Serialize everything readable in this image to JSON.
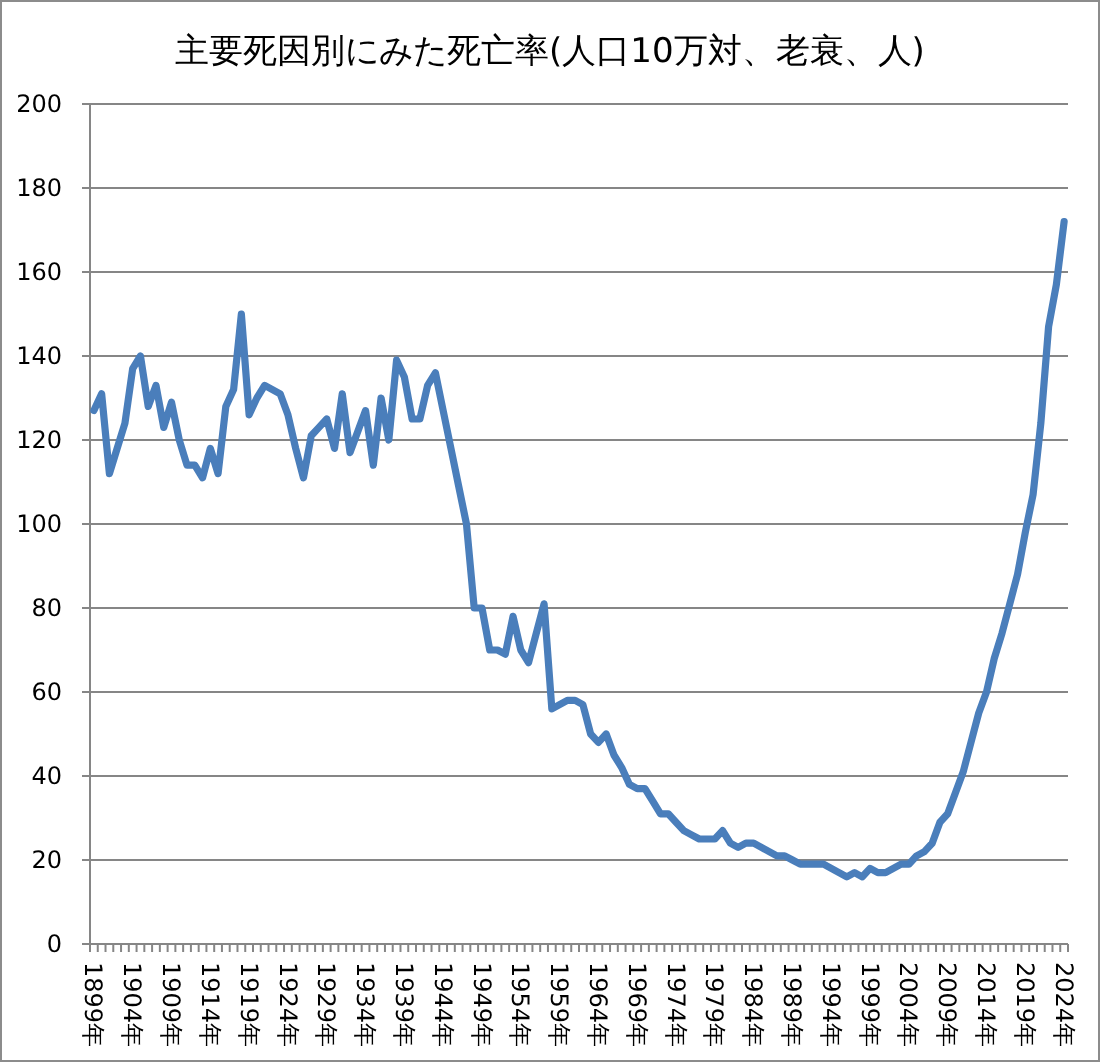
{
  "chart_data": {
    "type": "line",
    "title": "主要死因別にみた死亡率(人口10万対、老衰、人)",
    "categories": [
      "1899年",
      null,
      null,
      null,
      null,
      "1904年",
      null,
      null,
      null,
      null,
      "1909年",
      null,
      null,
      null,
      null,
      "1914年",
      null,
      null,
      null,
      null,
      "1919年",
      null,
      null,
      null,
      null,
      "1924年",
      null,
      null,
      null,
      null,
      "1929年",
      null,
      null,
      null,
      null,
      "1934年",
      null,
      null,
      null,
      null,
      "1939年",
      null,
      null,
      null,
      null,
      "1944年",
      null,
      null,
      null,
      null,
      "1949年",
      null,
      null,
      null,
      null,
      "1954年",
      null,
      null,
      null,
      null,
      "1959年",
      null,
      null,
      null,
      null,
      "1964年",
      null,
      null,
      null,
      null,
      "1969年",
      null,
      null,
      null,
      null,
      "1974年",
      null,
      null,
      null,
      null,
      "1979年",
      null,
      null,
      null,
      null,
      "1984年",
      null,
      null,
      null,
      null,
      "1989年",
      null,
      null,
      null,
      null,
      "1994年",
      null,
      null,
      null,
      null,
      "1999年",
      null,
      null,
      null,
      null,
      "2004年",
      null,
      null,
      null,
      null,
      "2009年",
      null,
      null,
      null,
      null,
      "2014年",
      null,
      null,
      null,
      null,
      "2019年",
      null,
      null,
      null,
      null,
      "2024年"
    ],
    "series": [
      {
        "color": "#4a7ebb",
        "values": [
          127,
          131,
          112,
          118,
          124,
          137,
          140,
          128,
          133,
          123,
          129,
          120,
          114,
          114,
          111,
          118,
          112,
          128,
          132,
          150,
          126,
          130,
          133,
          132,
          131,
          126,
          118,
          111,
          121,
          123,
          125,
          118,
          131,
          117,
          122,
          127,
          114,
          130,
          120,
          139,
          135,
          125,
          125,
          133,
          136,
          127,
          118,
          109,
          100,
          80,
          80,
          70,
          70,
          69,
          78,
          70,
          67,
          74,
          81,
          56,
          57,
          58,
          58,
          57,
          50,
          48,
          50,
          45,
          42,
          38,
          37,
          37,
          34,
          31,
          31,
          29,
          27,
          26,
          25,
          25,
          25,
          27,
          24,
          23,
          24,
          24,
          23,
          22,
          21,
          21,
          20,
          19,
          19,
          19,
          19,
          18,
          17,
          16,
          17,
          16,
          18,
          17,
          17,
          18,
          19,
          19,
          21,
          22,
          24,
          29,
          31,
          36,
          41,
          48,
          55,
          60,
          68,
          74,
          81,
          88,
          98,
          107,
          124,
          147,
          157,
          172
        ]
      }
    ],
    "ylim": [
      0,
      200
    ],
    "yticks": [
      0,
      20,
      40,
      60,
      80,
      100,
      120,
      140,
      160,
      180,
      200
    ],
    "grid": "y"
  }
}
